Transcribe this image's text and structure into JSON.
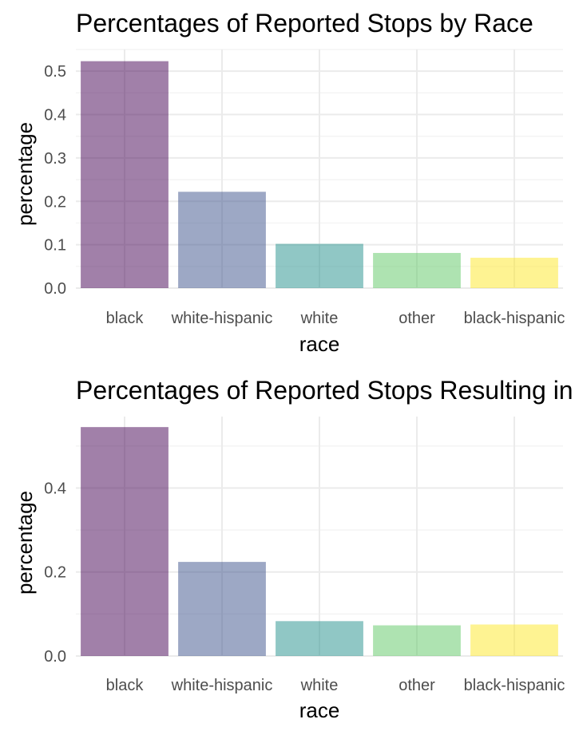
{
  "chart_data": [
    {
      "type": "bar",
      "title": "Percentages of Reported Stops by Race",
      "xlabel": "race",
      "ylabel": "percentage",
      "categories": [
        "black",
        "white-hispanic",
        "white",
        "other",
        "black-hispanic"
      ],
      "values": [
        0.523,
        0.222,
        0.102,
        0.081,
        0.07
      ],
      "colors": [
        "#440154",
        "#3b528b",
        "#21908c",
        "#5dc863",
        "#fde725"
      ],
      "bar_opacity": 0.5,
      "ylim": [
        0,
        0.55
      ],
      "yticks": [
        0.0,
        0.1,
        0.2,
        0.3,
        0.4,
        0.5
      ],
      "ytick_labels": [
        "0.0",
        "0.1",
        "0.2",
        "0.3",
        "0.4",
        "0.5"
      ],
      "grid": true,
      "legend": "none"
    },
    {
      "type": "bar",
      "title": "Percentages of Reported Stops Resulting in Arrest by Race",
      "xlabel": "race",
      "ylabel": "percentage",
      "categories": [
        "black",
        "white-hispanic",
        "white",
        "other",
        "black-hispanic"
      ],
      "values": [
        0.545,
        0.224,
        0.083,
        0.073,
        0.075
      ],
      "colors": [
        "#440154",
        "#3b528b",
        "#21908c",
        "#5dc863",
        "#fde725"
      ],
      "bar_opacity": 0.5,
      "ylim": [
        0,
        0.57
      ],
      "yticks": [
        0.0,
        0.2,
        0.4
      ],
      "ytick_labels": [
        "0.0",
        "0.2",
        "0.4"
      ],
      "grid": true,
      "legend": "none"
    }
  ]
}
